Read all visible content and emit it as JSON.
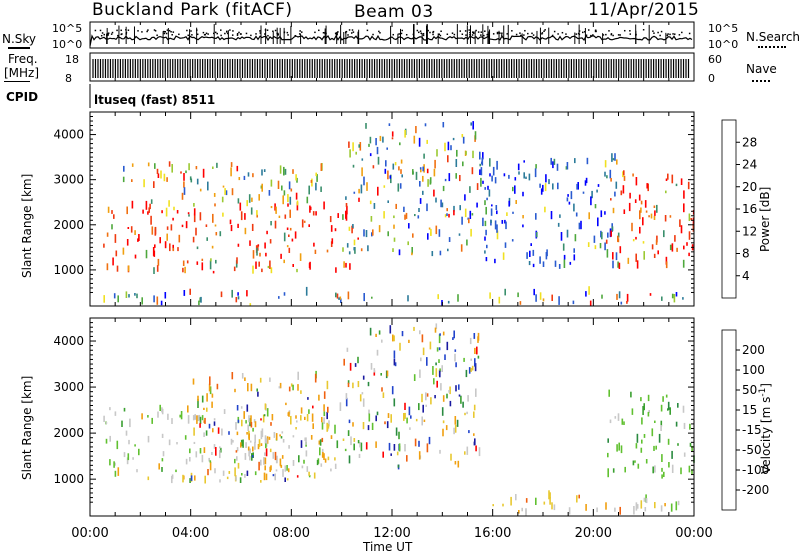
{
  "header": {
    "title": "Buckland Park (fitACF)",
    "beam": "Beam 03",
    "date": "11/Apr/2015"
  },
  "panels": {
    "nsky": {
      "label": "N.Sky",
      "tick_hi": "10^5",
      "tick_lo": "10^0"
    },
    "freq": {
      "label_line1": "Freq.",
      "label_line2": "[MHz]",
      "tick_hi": "18",
      "tick_lo": "8"
    },
    "nsearch": {
      "label": "N.Search",
      "tick_hi": "10^5",
      "tick_lo": "10^0"
    },
    "nave": {
      "label": "Nave",
      "tick_hi": "60",
      "tick_lo": "0"
    },
    "cpid": {
      "label": "CPID",
      "value": "ltuseq (fast) 8511"
    }
  },
  "chart_data": [
    {
      "type": "heatmap",
      "name": "power",
      "ylabel": "Slant Range [km]",
      "xlabel": "",
      "x_ticks": [
        "00:00",
        "04:00",
        "08:00",
        "12:00",
        "16:00",
        "20:00",
        "00:00"
      ],
      "y_ticks": [
        1000,
        2000,
        3000,
        4000
      ],
      "ylim": [
        200,
        4500
      ],
      "colorbar": {
        "label": "Power [dB]",
        "ticks": [
          "4",
          "8",
          "12",
          "16",
          "20",
          "24",
          "28"
        ],
        "colors": [
          "#0000ff",
          "#2a5bd0",
          "#2c7b9a",
          "#3a8f6c",
          "#4ea83c",
          "#9bc932",
          "#f0e020",
          "#f0a010",
          "#f07010",
          "#f03a10",
          "#ff0000"
        ]
      },
      "regions": [
        {
          "t0": 0.5,
          "t1": 10.5,
          "r0": 900,
          "r1": 2400,
          "level": "high"
        },
        {
          "t0": 1.0,
          "t1": 9.5,
          "r0": 2400,
          "r1": 3300,
          "level": "mid"
        },
        {
          "t0": 10.0,
          "t1": 15.5,
          "r0": 1300,
          "r1": 4200,
          "level": "mixed"
        },
        {
          "t0": 15.5,
          "t1": 21.0,
          "r0": 1000,
          "r1": 3500,
          "level": "low"
        },
        {
          "t0": 20.5,
          "t1": 24.0,
          "r0": 1000,
          "r1": 3100,
          "level": "high"
        },
        {
          "t0": 0.0,
          "t1": 24.0,
          "r0": 200,
          "r1": 450,
          "level": "mixed"
        }
      ]
    },
    {
      "type": "heatmap",
      "name": "velocity",
      "ylabel": "Slant Range [km]",
      "xlabel": "Time UT",
      "x_ticks": [
        "00:00",
        "04:00",
        "08:00",
        "12:00",
        "16:00",
        "20:00",
        "00:00"
      ],
      "y_ticks": [
        1000,
        2000,
        3000,
        4000
      ],
      "ylim": [
        200,
        4500
      ],
      "colorbar": {
        "label": "Velocity [m s^-1]",
        "ticks": [
          "200",
          "100",
          "50",
          "15",
          "-15",
          "-50",
          "-100",
          "-200"
        ],
        "colors": [
          "#1a1aa0",
          "#2244cc",
          "#2a8a40",
          "#3aa030",
          "#60c030",
          "#c8c8c8",
          "#e8c830",
          "#f0a010",
          "#f06010",
          "#ff0000"
        ]
      },
      "regions": [
        {
          "t0": 0.5,
          "t1": 10.0,
          "r0": 900,
          "r1": 2500,
          "level": "grey-green"
        },
        {
          "t0": 4.0,
          "t1": 9.5,
          "r0": 900,
          "r1": 3200,
          "level": "orange"
        },
        {
          "t0": 10.0,
          "t1": 15.5,
          "r0": 1200,
          "r1": 4300,
          "level": "mixed"
        },
        {
          "t0": 15.5,
          "t1": 24.0,
          "r0": 200,
          "r1": 600,
          "level": "orange-grey"
        },
        {
          "t0": 20.5,
          "t1": 24.0,
          "r0": 1000,
          "r1": 2800,
          "level": "green"
        }
      ]
    }
  ]
}
